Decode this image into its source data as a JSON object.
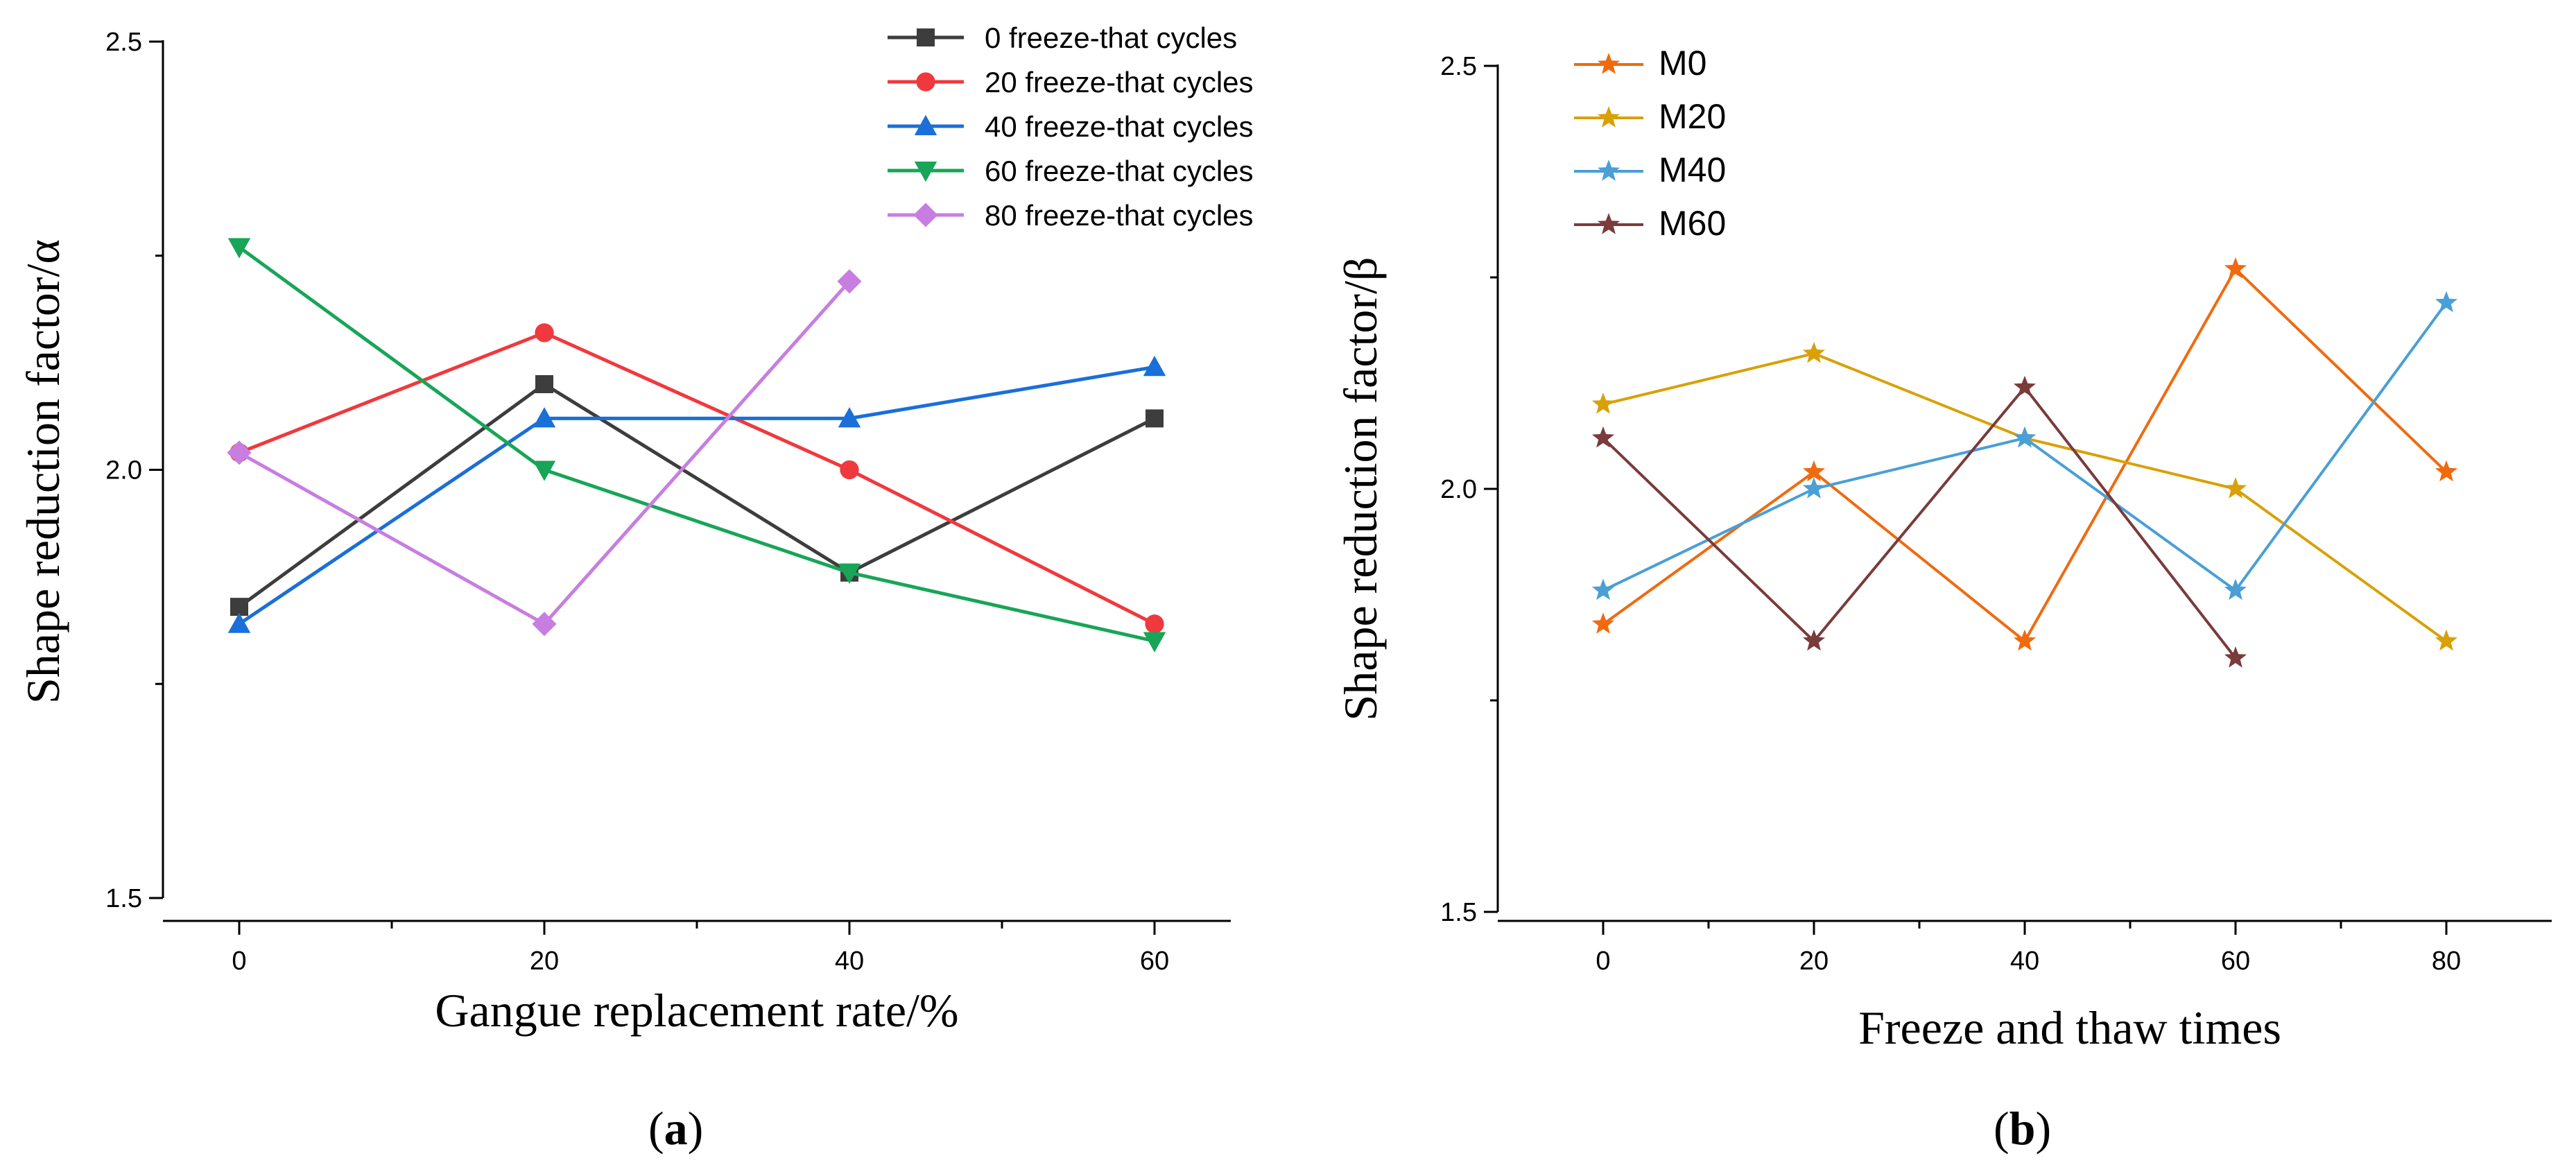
{
  "chart_data": [
    {
      "id": "a",
      "type": "line",
      "caption_letter": "a",
      "xlabel": "Gangue replacement rate/%",
      "ylabel": "Shape reduction factor/α",
      "x": [
        0,
        20,
        40,
        60
      ],
      "xticks": [
        "0",
        "20",
        "40",
        "60"
      ],
      "yticks": [
        "1.5",
        "2.0",
        "2.5"
      ],
      "xlim": [
        -5,
        65
      ],
      "ylim": [
        1.5,
        2.5
      ],
      "legend_position": "top-right",
      "series": [
        {
          "name": "0 freeze-that cycles",
          "color": "#3d3d3d",
          "marker": "square",
          "values": [
            1.84,
            2.1,
            1.88,
            2.06
          ]
        },
        {
          "name": "20 freeze-that cycles",
          "color": "#f0393e",
          "marker": "circle",
          "values": [
            2.02,
            2.16,
            2.0,
            1.82
          ]
        },
        {
          "name": "40 freeze-that cycles",
          "color": "#1a6fd8",
          "marker": "triangle-up",
          "values": [
            1.82,
            2.06,
            2.06,
            2.12
          ]
        },
        {
          "name": "60 freeze-that cycles",
          "color": "#18a558",
          "marker": "triangle-down",
          "values": [
            2.26,
            2.0,
            1.88,
            1.8
          ]
        },
        {
          "name": "80 freeze-that cycles",
          "color": "#c77ee0",
          "marker": "diamond",
          "values": [
            2.02,
            1.82,
            2.22,
            null
          ]
        }
      ]
    },
    {
      "id": "b",
      "type": "line",
      "caption_letter": "b",
      "xlabel": "Freeze and thaw times",
      "ylabel": "Shape reduction factor/β",
      "x": [
        0,
        20,
        40,
        60,
        80
      ],
      "xticks": [
        "0",
        "20",
        "40",
        "60",
        "80"
      ],
      "yticks": [
        "1.5",
        "2.0",
        "2.5"
      ],
      "xlim": [
        -10,
        90
      ],
      "ylim": [
        1.5,
        2.5
      ],
      "legend_position": "top-left",
      "series": [
        {
          "name": "M0",
          "color": "#f06a0f",
          "marker": "star",
          "values": [
            1.84,
            2.02,
            1.82,
            2.26,
            2.02
          ]
        },
        {
          "name": "M20",
          "color": "#d9a008",
          "marker": "star",
          "values": [
            2.1,
            2.16,
            2.06,
            2.0,
            1.82
          ]
        },
        {
          "name": "M40",
          "color": "#4a9fd6",
          "marker": "star",
          "values": [
            1.88,
            2.0,
            2.06,
            1.88,
            2.22
          ]
        },
        {
          "name": "M60",
          "color": "#7a3b3b",
          "marker": "star",
          "values": [
            2.06,
            1.82,
            2.12,
            1.8,
            null
          ]
        }
      ]
    }
  ]
}
